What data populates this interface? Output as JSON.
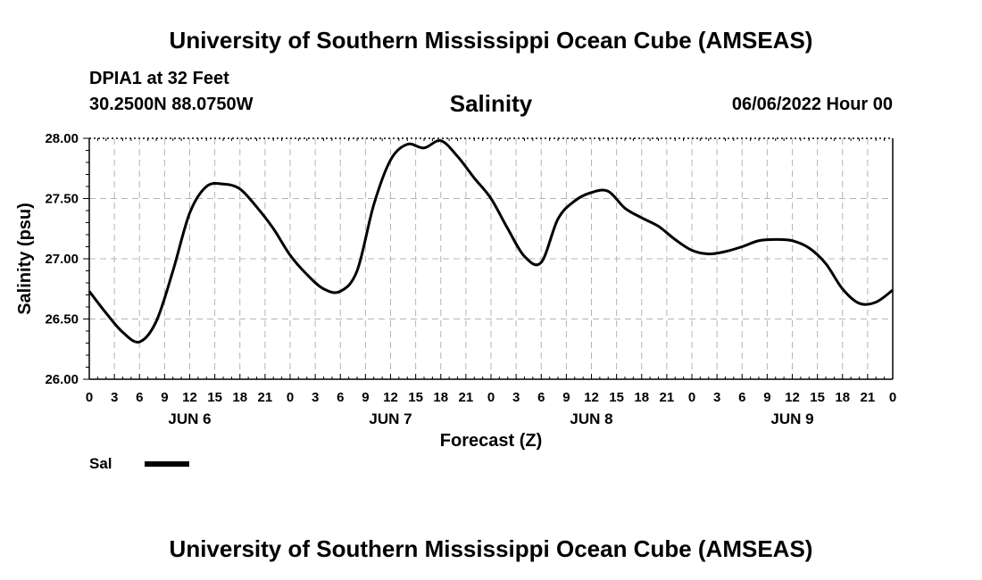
{
  "header": {
    "title": "University of Southern Mississippi Ocean Cube (AMSEAS)",
    "station": "DPIA1 at 32 Feet",
    "coords": "30.2500N  88.0750W",
    "chart_title": "Salinity",
    "datetime": "06/06/2022 Hour 00"
  },
  "footer": {
    "title": "University of Southern Mississippi Ocean Cube (AMSEAS)"
  },
  "legend": {
    "label": "Sal"
  },
  "chart_data": {
    "type": "line",
    "title": "Salinity",
    "xlabel": "Forecast (Z)",
    "ylabel": "Salinity (psu)",
    "ylim": [
      26.0,
      28.0
    ],
    "xlim": [
      0,
      96
    ],
    "y_ticks": [
      "26.00",
      "26.50",
      "27.00",
      "27.50",
      "28.00"
    ],
    "y_tick_values": [
      26.0,
      26.5,
      27.0,
      27.5,
      28.0
    ],
    "x_tick_labels": [
      "0",
      "3",
      "6",
      "9",
      "12",
      "15",
      "18",
      "21",
      "0",
      "3",
      "6",
      "9",
      "12",
      "15",
      "18",
      "21",
      "0",
      "3",
      "6",
      "9",
      "12",
      "15",
      "18",
      "21",
      "0",
      "3",
      "6",
      "9",
      "12",
      "15",
      "18",
      "21",
      "0"
    ],
    "day_labels": [
      {
        "label": "JUN 6",
        "hour": 12
      },
      {
        "label": "JUN 7",
        "hour": 36
      },
      {
        "label": "JUN 8",
        "hour": 60
      },
      {
        "label": "JUN 9",
        "hour": 84
      }
    ],
    "grid": true,
    "series": [
      {
        "name": "Sal",
        "x": [
          0,
          2,
          4,
          6,
          8,
          10,
          12,
          14,
          16,
          18,
          20,
          22,
          24,
          26,
          28,
          30,
          32,
          34,
          36,
          38,
          40,
          42,
          44,
          46,
          48,
          50,
          52,
          54,
          56,
          58,
          60,
          62,
          64,
          66,
          68,
          70,
          72,
          74,
          76,
          78,
          80,
          82,
          84,
          86,
          88,
          90,
          92,
          94,
          96
        ],
        "values": [
          26.73,
          26.55,
          26.39,
          26.31,
          26.48,
          26.9,
          27.38,
          27.6,
          27.62,
          27.58,
          27.43,
          27.25,
          27.03,
          26.87,
          26.75,
          26.73,
          26.9,
          27.45,
          27.82,
          27.95,
          27.92,
          27.98,
          27.85,
          27.67,
          27.5,
          27.25,
          27.02,
          26.97,
          27.33,
          27.48,
          27.55,
          27.56,
          27.42,
          27.34,
          27.27,
          27.16,
          27.07,
          27.04,
          27.06,
          27.1,
          27.15,
          27.16,
          27.15,
          27.09,
          26.96,
          26.75,
          26.63,
          26.64,
          26.74
        ]
      }
    ]
  }
}
